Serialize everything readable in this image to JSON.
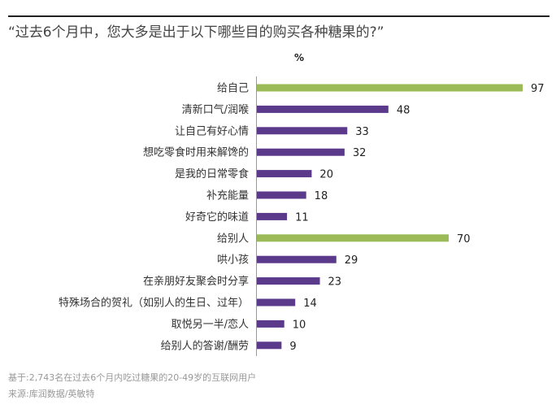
{
  "chart_data": {
    "type": "bar",
    "orientation": "horizontal",
    "title": "“过去6个月中，您大多是出于以下哪些目的购买各种糖果的?”",
    "unit_label": "%",
    "categories": [
      "给自己",
      "清新口气/润喉",
      "让自己有好心情",
      "想吃零食时用来解馋的",
      "是我的日常零食",
      "补充能量",
      "好奇它的味道",
      "给别人",
      "哄小孩",
      "在亲朋好友聚会时分享",
      "特殊场合的贺礼（如别人的生日、过年）",
      "取悦另一半/恋人",
      "给别人的答谢/酬劳"
    ],
    "values": [
      97,
      48,
      33,
      32,
      20,
      18,
      11,
      70,
      29,
      23,
      14,
      10,
      9
    ],
    "highlight": [
      true,
      false,
      false,
      false,
      false,
      false,
      false,
      true,
      false,
      false,
      false,
      false,
      false
    ],
    "xlim": [
      0,
      100
    ],
    "grid": false,
    "colors": {
      "highlight": "#9bbb59",
      "default": "#5b3a8c"
    }
  },
  "footnotes": {
    "base": "基于:2,743名在过去6个月内吃过糖果的20-49岁的互联网用户",
    "source": "来源:库润数据/英敏特"
  }
}
